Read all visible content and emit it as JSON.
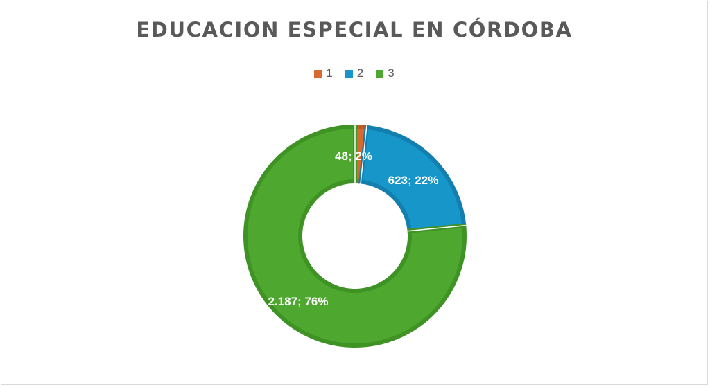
{
  "chart_data": {
    "type": "pie",
    "variant": "donut",
    "title": "EDUCACION ESPECIAL EN CÓRDOBA",
    "categories": [
      "1",
      "2",
      "3"
    ],
    "values": [
      48,
      623,
      2187
    ],
    "percent_labels": [
      "2%",
      "22%",
      "76%"
    ],
    "data_labels": [
      "48; 2%",
      "623; 22%",
      "2.187; 76%"
    ],
    "colors": [
      "#d8692f",
      "#1696c9",
      "#4ea72e"
    ],
    "border_colors": [
      "#c15a24",
      "#137fae",
      "#3f9224"
    ],
    "legend": "top",
    "start_angle_deg": 0,
    "direction": "clockwise"
  }
}
